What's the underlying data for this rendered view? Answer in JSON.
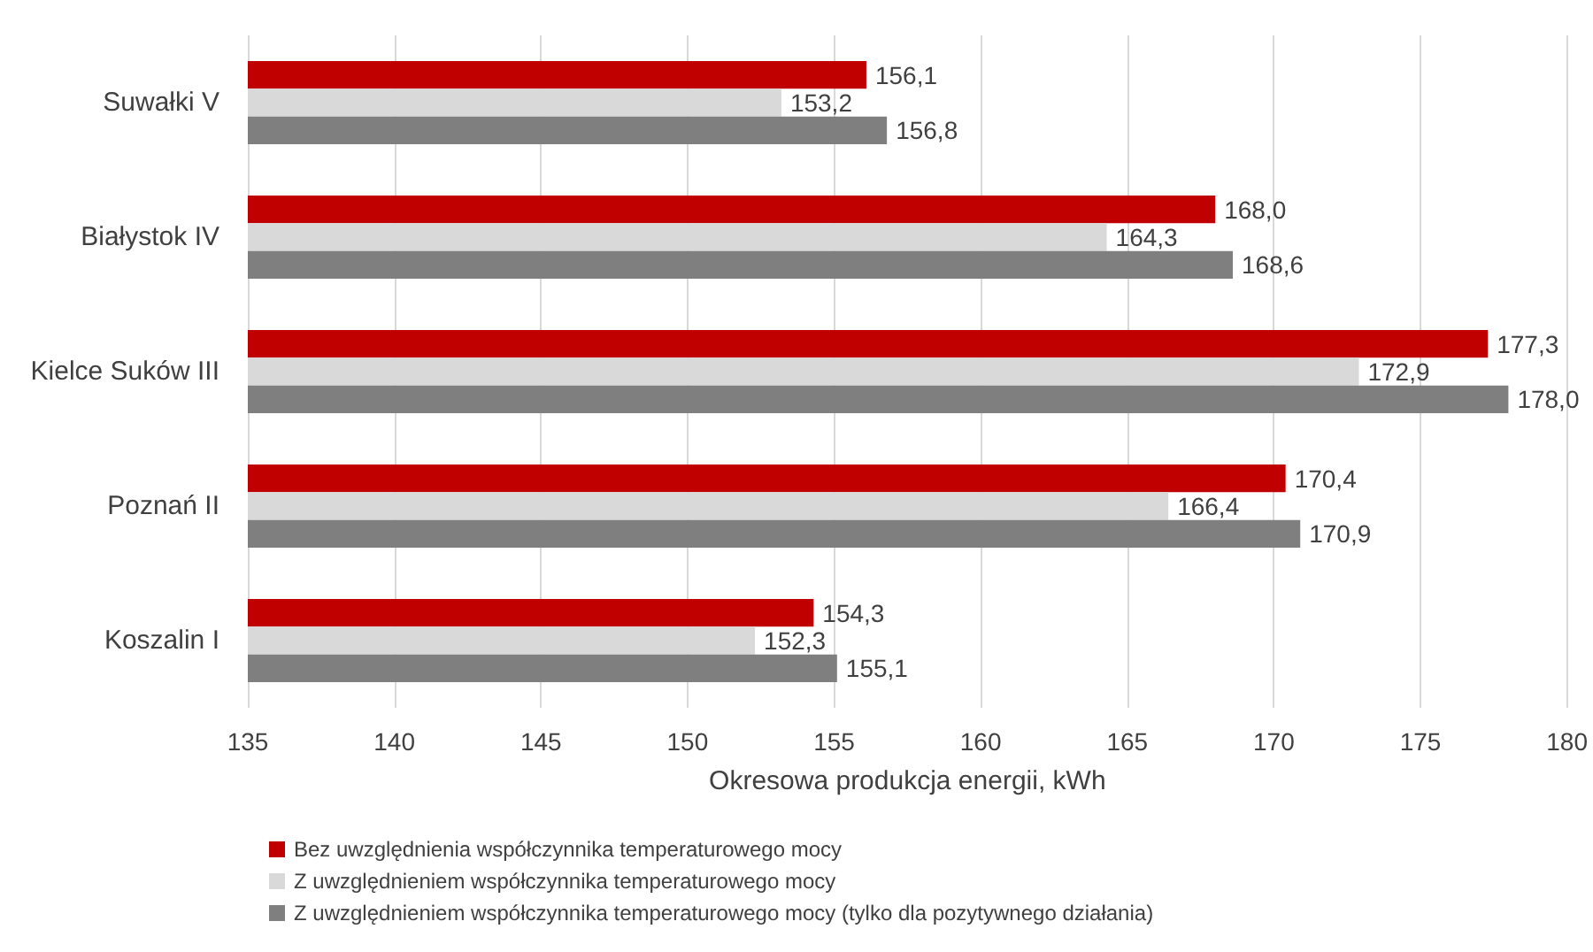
{
  "chart_data": {
    "type": "bar",
    "orientation": "horizontal",
    "xlabel": "Okresowa produkcja energii, kWh",
    "categories": [
      "Suwałki V",
      "Białystok IV",
      "Kielce Suków III",
      "Poznań II",
      "Koszalin I"
    ],
    "series": [
      {
        "name": "Bez uwzględnienia współczynnika temperaturowego mocy",
        "color": "#c00000",
        "values": [
          156.1,
          168.0,
          177.3,
          170.4,
          154.3
        ],
        "value_labels": [
          "156,1",
          "168,0",
          "177,3",
          "170,4",
          "154,3"
        ]
      },
      {
        "name": "Z uwzględnieniem współczynnika temperaturowego mocy",
        "color": "#d9d9d9",
        "values": [
          153.2,
          164.3,
          172.9,
          166.4,
          152.3
        ],
        "value_labels": [
          "153,2",
          "164,3",
          "172,9",
          "166,4",
          "152,3"
        ]
      },
      {
        "name": "Z uwzględnieniem współczynnika temperaturowego mocy (tylko dla pozytywnego działania)",
        "color": "#7f7f7f",
        "values": [
          156.8,
          168.6,
          178.0,
          170.9,
          155.1
        ],
        "value_labels": [
          "156,8",
          "168,6",
          "178,0",
          "170,9",
          "155,1"
        ]
      }
    ],
    "xlim": [
      135,
      180
    ],
    "xticks": [
      135,
      140,
      145,
      150,
      155,
      160,
      165,
      170,
      175,
      180
    ],
    "grid": "x",
    "legend": "bottom"
  }
}
